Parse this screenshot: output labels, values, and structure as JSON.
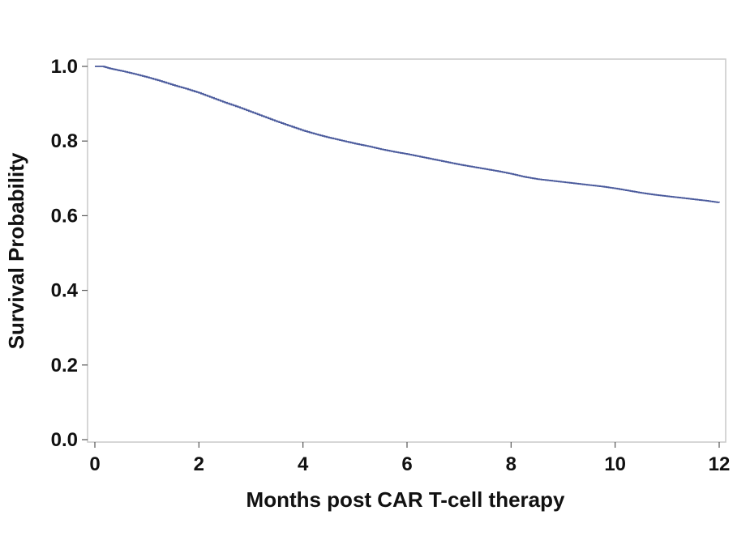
{
  "chart_data": {
    "type": "line",
    "title": "",
    "xlabel": "Months post CAR T-cell therapy",
    "ylabel": "Survival Probability",
    "xlim": [
      0,
      12
    ],
    "ylim": [
      0,
      1
    ],
    "xticks": [
      0,
      2,
      4,
      6,
      8,
      10,
      12
    ],
    "yticks": [
      0.0,
      0.2,
      0.4,
      0.6,
      0.8,
      1.0
    ],
    "xtick_labels": [
      "0",
      "2",
      "4",
      "6",
      "8",
      "10",
      "12"
    ],
    "ytick_labels": [
      "0.0",
      "0.2",
      "0.4",
      "0.6",
      "0.8",
      "1.0"
    ],
    "grid": false,
    "legend": "none",
    "line_color": "#4a5a9c",
    "frame_color": "#c8c8c8",
    "series": [
      {
        "step": true,
        "x": [
          0,
          0.15,
          0.3,
          0.5,
          0.75,
          1.0,
          1.25,
          1.5,
          1.75,
          2.0,
          2.25,
          2.5,
          2.75,
          3.0,
          3.25,
          3.5,
          3.75,
          4.0,
          4.25,
          4.5,
          4.75,
          5.0,
          5.25,
          5.5,
          5.75,
          6.0,
          6.25,
          6.5,
          6.75,
          7.0,
          7.25,
          7.5,
          7.75,
          8.0,
          8.25,
          8.5,
          8.75,
          9.0,
          9.25,
          9.5,
          9.75,
          10.0,
          10.25,
          10.5,
          10.75,
          11.0,
          11.25,
          11.5,
          11.75,
          12.0
        ],
        "y": [
          1.0,
          1.0,
          0.994,
          0.988,
          0.98,
          0.971,
          0.961,
          0.95,
          0.94,
          0.929,
          0.916,
          0.903,
          0.891,
          0.878,
          0.865,
          0.852,
          0.84,
          0.828,
          0.818,
          0.809,
          0.801,
          0.793,
          0.786,
          0.778,
          0.771,
          0.765,
          0.758,
          0.751,
          0.744,
          0.737,
          0.731,
          0.725,
          0.719,
          0.712,
          0.704,
          0.698,
          0.694,
          0.69,
          0.686,
          0.682,
          0.678,
          0.673,
          0.667,
          0.661,
          0.656,
          0.652,
          0.648,
          0.644,
          0.64,
          0.635
        ]
      }
    ]
  }
}
